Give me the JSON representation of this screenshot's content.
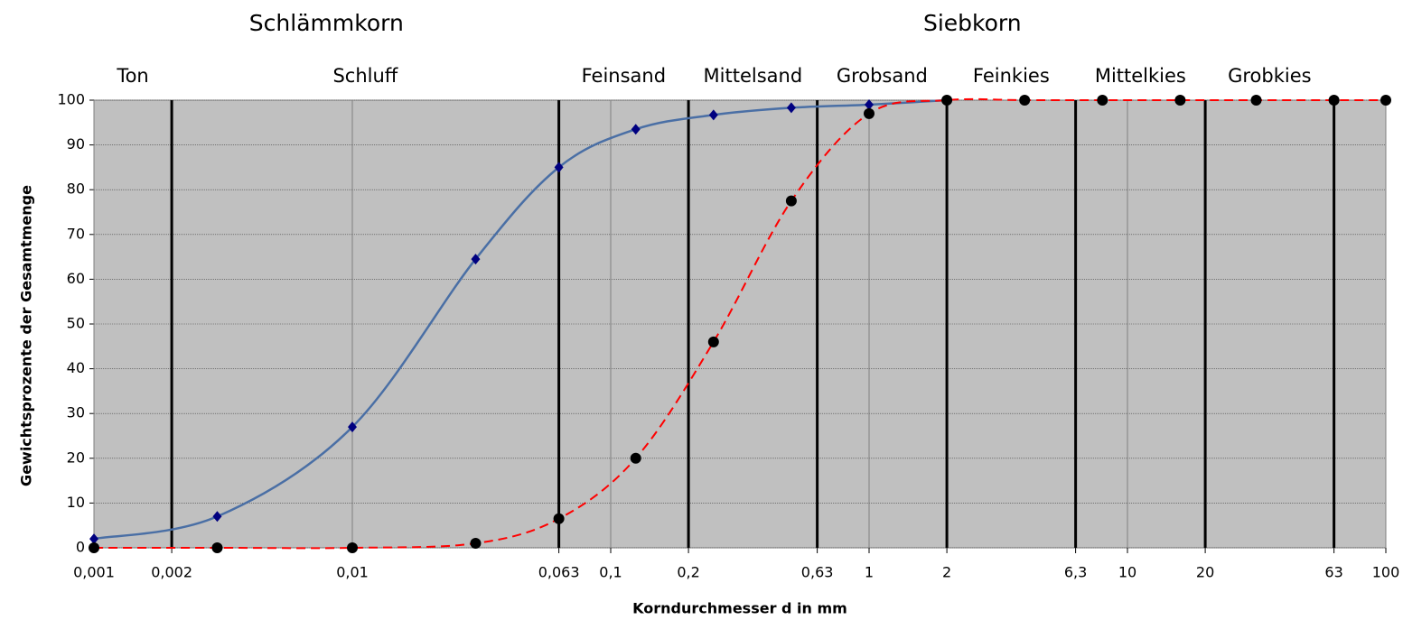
{
  "chart_data": {
    "type": "line",
    "x_label": "Korndurchmesser d in mm",
    "y_label": "Gewichtsprozente der Gesamtmenge",
    "xscale": "log",
    "xlim": [
      0.001,
      100
    ],
    "ylim": [
      0,
      100
    ],
    "xticks": [
      {
        "value": 0.001,
        "label": "0,001"
      },
      {
        "value": 0.002,
        "label": "0,002"
      },
      {
        "value": 0.01,
        "label": "0,01"
      },
      {
        "value": 0.063,
        "label": "0,063"
      },
      {
        "value": 0.1,
        "label": "0,1"
      },
      {
        "value": 0.2,
        "label": "0,2"
      },
      {
        "value": 0.63,
        "label": "0,63"
      },
      1,
      2,
      {
        "value": 6.3,
        "label": "6,3"
      },
      10,
      20,
      63,
      100
    ],
    "yticks": [
      0,
      10,
      20,
      30,
      40,
      50,
      60,
      70,
      80,
      90,
      100
    ],
    "grid": true,
    "groups": [
      {
        "label": "Schlämmkorn",
        "from": 0.001,
        "to": 0.063
      },
      {
        "label": "Siebkorn",
        "from": 0.063,
        "to": 100
      }
    ],
    "zones": [
      {
        "label": "Ton",
        "from": 0.001,
        "to": 0.002
      },
      {
        "label": "Schluff",
        "from": 0.002,
        "to": 0.063
      },
      {
        "label": "Feinsand",
        "from": 0.063,
        "to": 0.2
      },
      {
        "label": "Mittelsand",
        "from": 0.2,
        "to": 0.63
      },
      {
        "label": "Grobsand",
        "from": 0.63,
        "to": 2
      },
      {
        "label": "Feinkies",
        "from": 2,
        "to": 6.3
      },
      {
        "label": "Mittelkies",
        "from": 6.3,
        "to": 20
      },
      {
        "label": "Grobkies",
        "from": 20,
        "to": 63
      }
    ],
    "series": [
      {
        "color": "#4a6fa5",
        "marker": "diamond",
        "marker_color": "#000080",
        "dash": false,
        "x": [
          0.001,
          0.003,
          0.01,
          0.03,
          0.063,
          0.125,
          0.25,
          0.5,
          1,
          2
        ],
        "values": [
          2,
          7,
          27,
          64.5,
          85,
          93.5,
          96.7,
          98.3,
          99,
          100
        ]
      },
      {
        "color": "#ff0000",
        "marker": "circle",
        "marker_color": "#000000",
        "dash": true,
        "x": [
          0.001,
          0.003,
          0.01,
          0.03,
          0.063,
          0.125,
          0.25,
          0.5,
          1,
          2,
          4,
          8,
          16,
          31.5,
          63,
          100
        ],
        "values": [
          0,
          0,
          0,
          1,
          6.5,
          20,
          46,
          77.5,
          97,
          100,
          100,
          100,
          100,
          100,
          100,
          100
        ]
      }
    ]
  }
}
